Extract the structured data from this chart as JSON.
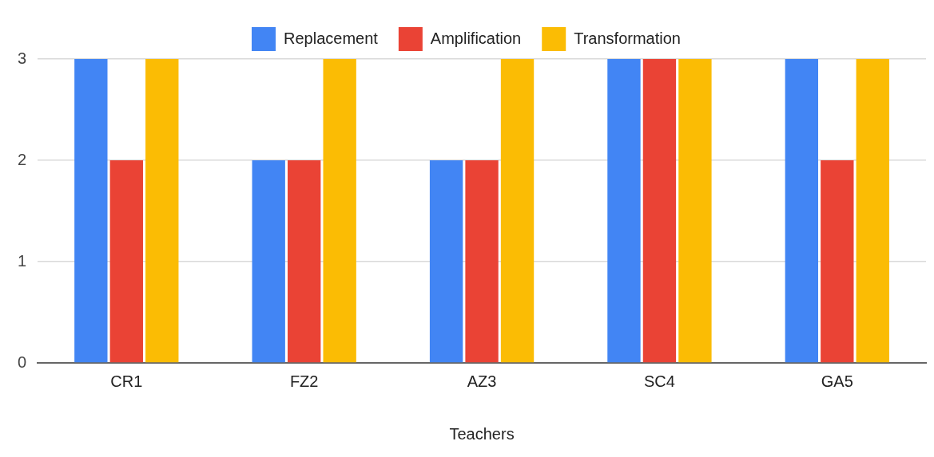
{
  "chart_data": {
    "type": "bar",
    "xlabel": "Teachers",
    "categories": [
      "CR1",
      "FZ2",
      "AZ3",
      "SC4",
      "GA5"
    ],
    "series": [
      {
        "name": "Replacement",
        "color": "#4285f4",
        "values": [
          3,
          2,
          2,
          3,
          3
        ]
      },
      {
        "name": "Amplification",
        "color": "#ea4335",
        "values": [
          2,
          2,
          2,
          3,
          2
        ]
      },
      {
        "name": "Transformation",
        "color": "#fbbc04",
        "values": [
          3,
          3,
          3,
          3,
          3
        ]
      }
    ],
    "ylim": [
      0,
      3
    ],
    "yticks": [
      0,
      1,
      2,
      3
    ],
    "grid": "y",
    "legend": "top"
  }
}
